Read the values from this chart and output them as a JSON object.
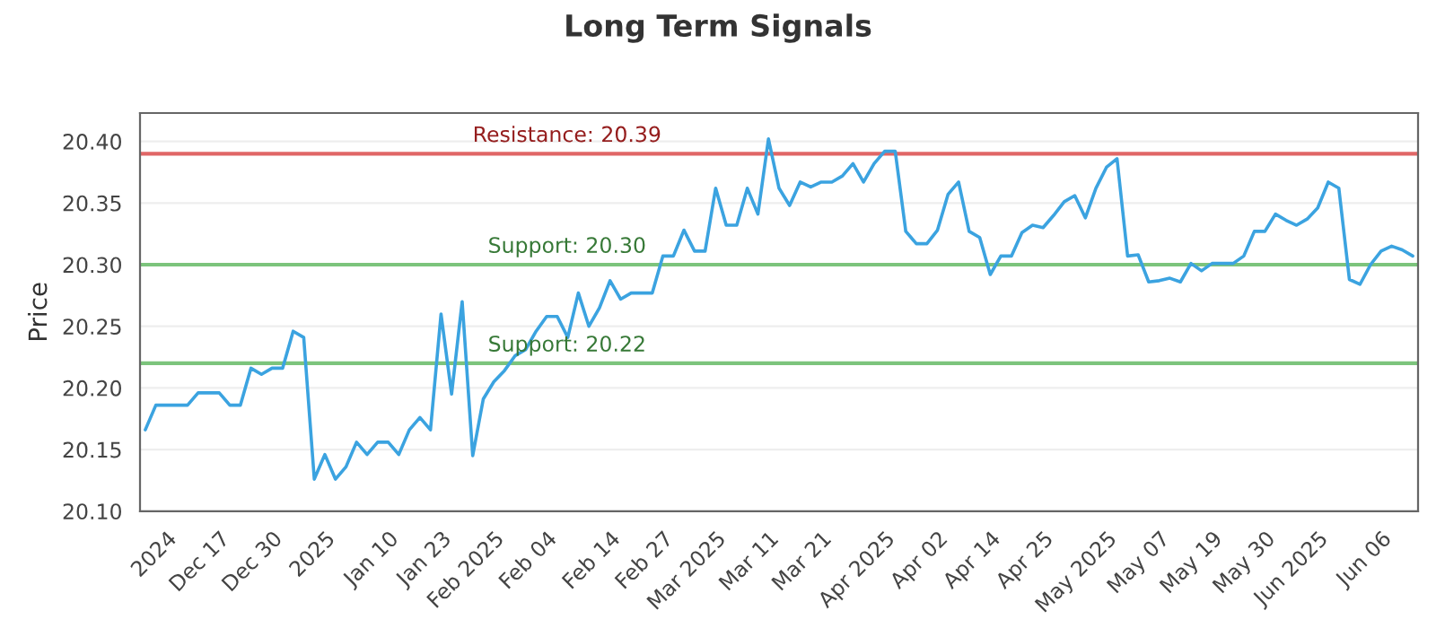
{
  "chart_data": {
    "type": "line",
    "title": "Long Term Signals",
    "ylabel": "Price",
    "categories": [
      null,
      null,
      "2024",
      null,
      null,
      null,
      null,
      "Dec 17",
      null,
      null,
      null,
      null,
      "Dec 30",
      null,
      null,
      null,
      null,
      "2025",
      null,
      null,
      null,
      null,
      null,
      "Jan 10",
      null,
      null,
      null,
      null,
      "Jan 23",
      null,
      null,
      null,
      null,
      "Feb 2025",
      null,
      null,
      null,
      null,
      "Feb 04",
      null,
      null,
      null,
      null,
      null,
      "Feb 14",
      null,
      null,
      null,
      null,
      "Feb 27",
      null,
      null,
      null,
      null,
      "Mar 2025",
      null,
      null,
      null,
      null,
      "Mar 11",
      null,
      null,
      null,
      null,
      "Mar 21",
      null,
      null,
      null,
      null,
      null,
      "Apr 2025",
      null,
      null,
      null,
      null,
      "Apr 02",
      null,
      null,
      null,
      null,
      "Apr 14",
      null,
      null,
      null,
      null,
      "Apr 25",
      null,
      null,
      null,
      null,
      null,
      "May 2025",
      null,
      null,
      null,
      null,
      "May 07",
      null,
      null,
      null,
      null,
      "May 19",
      null,
      null,
      null,
      null,
      "May 30",
      null,
      null,
      null,
      null,
      "Jun 2025",
      null,
      null,
      null,
      null,
      null,
      "Jun 06",
      null,
      null,
      null
    ],
    "series": [
      {
        "color": "#3ba3e0",
        "values": [
          20.166,
          20.186,
          20.186,
          20.186,
          20.186,
          20.196,
          20.196,
          20.196,
          20.186,
          20.186,
          20.216,
          20.211,
          20.216,
          20.216,
          20.246,
          20.241,
          20.126,
          20.146,
          20.126,
          20.136,
          20.156,
          20.146,
          20.156,
          20.156,
          20.146,
          20.166,
          20.176,
          20.166,
          20.26,
          20.195,
          20.27,
          20.145,
          20.191,
          20.205,
          20.214,
          20.226,
          20.231,
          20.246,
          20.258,
          20.258,
          20.241,
          20.277,
          20.25,
          20.265,
          20.287,
          20.272,
          20.277,
          20.277,
          20.277,
          20.307,
          20.307,
          20.328,
          20.311,
          20.311,
          20.362,
          20.332,
          20.332,
          20.362,
          20.341,
          20.402,
          20.362,
          20.348,
          20.367,
          20.363,
          20.367,
          20.367,
          20.372,
          20.382,
          20.367,
          20.382,
          20.392,
          20.392,
          20.327,
          20.317,
          20.317,
          20.328,
          20.357,
          20.367,
          20.327,
          20.322,
          20.292,
          20.307,
          20.307,
          20.326,
          20.332,
          20.33,
          20.34,
          20.351,
          20.356,
          20.338,
          20.362,
          20.379,
          20.386,
          20.307,
          20.308,
          20.286,
          20.287,
          20.289,
          20.286,
          20.301,
          20.295,
          20.301,
          20.301,
          20.301,
          20.307,
          20.327,
          20.327,
          20.341,
          20.336,
          20.332,
          20.337,
          20.346,
          20.367,
          20.362,
          20.288,
          20.284,
          20.3,
          20.311,
          20.315,
          20.312,
          20.307
        ]
      }
    ],
    "ylim": [
      20.1,
      20.423
    ],
    "yticks": [
      {
        "value": 20.1,
        "label": "20.10"
      },
      {
        "value": 20.15,
        "label": "20.15"
      },
      {
        "value": 20.2,
        "label": "20.20"
      },
      {
        "value": 20.25,
        "label": "20.25"
      },
      {
        "value": 20.3,
        "label": "20.30"
      },
      {
        "value": 20.35,
        "label": "20.35"
      },
      {
        "value": 20.4,
        "label": "20.40"
      }
    ],
    "ref_lines": [
      {
        "axis": "y",
        "value": 20.39,
        "label": "Resistance: 20.39",
        "color": "#e06666"
      },
      {
        "axis": "y",
        "value": 20.3,
        "label": "Support: 20.30",
        "color": "#7cc47c"
      },
      {
        "axis": "y",
        "value": 20.22,
        "label": "Support: 20.22",
        "color": "#7cc47c"
      }
    ],
    "grid": "y",
    "legend": false,
    "marker": "none",
    "line_style": "solid"
  }
}
